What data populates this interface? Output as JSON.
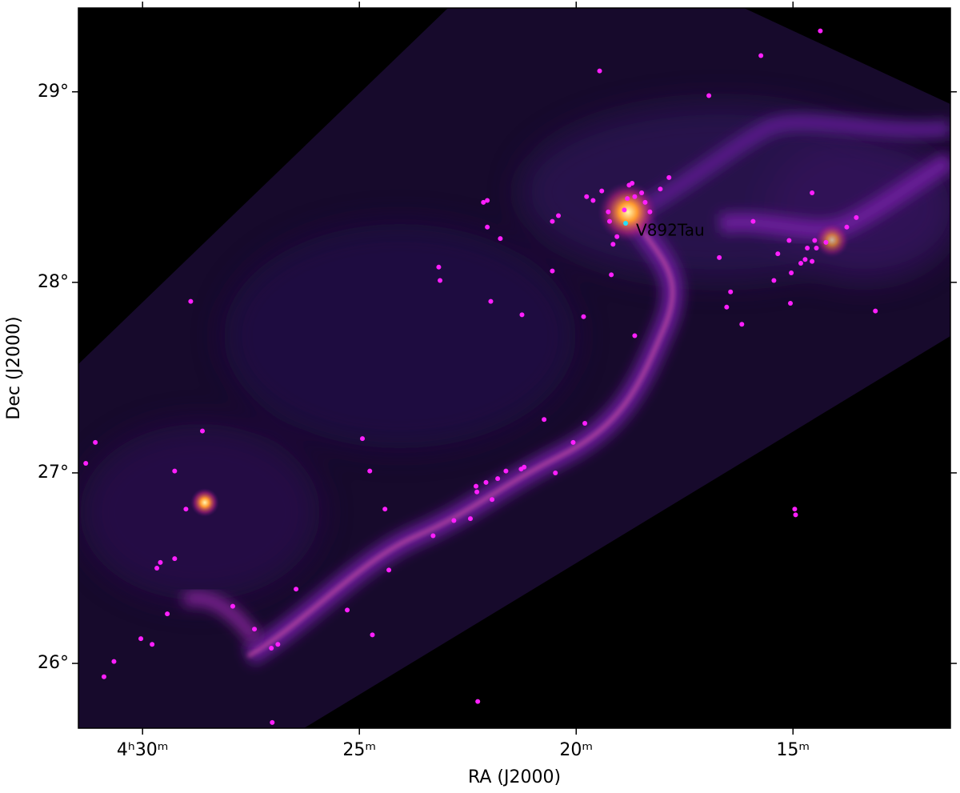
{
  "chart_data": {
    "type": "scatter",
    "xlabel": "RA (J2000)",
    "ylabel": "Dec (J2000)",
    "xlim": [
      31.48,
      11.37
    ],
    "ylim": [
      25.66,
      29.44
    ],
    "xticks": [
      {
        "value": 30,
        "label": "4ʰ30ᵐ"
      },
      {
        "value": 25,
        "label": "25ᵐ"
      },
      {
        "value": 20,
        "label": "20ᵐ"
      },
      {
        "value": 15,
        "label": "15ᵐ"
      }
    ],
    "yticks": [
      {
        "value": 26,
        "label": "26°"
      },
      {
        "value": 27,
        "label": "27°"
      },
      {
        "value": 28,
        "label": "28°"
      },
      {
        "value": 29,
        "label": "29°"
      }
    ],
    "series": [
      {
        "color": "#ff1fff",
        "x": [
          14.37,
          15.74,
          19.46,
          16.94,
          31.09,
          31.31,
          28.89,
          28.62,
          29.26,
          29.0,
          29.59,
          29.67,
          29.26,
          29.43,
          27.92,
          27.42,
          30.04,
          29.78,
          30.66,
          30.89,
          26.46,
          27.03,
          26.88,
          27.01,
          25.28,
          24.7,
          24.32,
          24.41,
          24.76,
          24.93,
          23.3,
          22.82,
          22.44,
          22.31,
          22.29,
          22.08,
          21.94,
          21.81,
          21.62,
          21.27,
          21.2,
          20.48,
          20.74,
          20.07,
          19.8,
          22.27,
          22.14,
          22.05,
          22.05,
          21.75,
          21.97,
          21.25,
          23.17,
          23.14,
          20.55,
          20.41,
          20.55,
          19.83,
          19.76,
          19.61,
          19.41,
          19.26,
          19.23,
          19.15,
          19.19,
          19.06,
          18.89,
          18.78,
          18.71,
          18.65,
          18.49,
          18.82,
          18.41,
          18.3,
          18.06,
          17.86,
          18.65,
          15.92,
          16.7,
          16.44,
          16.53,
          16.18,
          15.44,
          15.35,
          15.09,
          15.04,
          15.06,
          14.56,
          14.5,
          14.46,
          14.67,
          14.72,
          14.82,
          14.56,
          14.24,
          13.76,
          13.54,
          13.1,
          14.96,
          14.94
        ],
        "y": [
          29.32,
          29.19,
          29.11,
          28.98,
          27.16,
          27.05,
          27.9,
          27.22,
          27.01,
          26.81,
          26.53,
          26.5,
          26.55,
          26.26,
          26.3,
          26.18,
          26.13,
          26.1,
          26.01,
          25.93,
          26.39,
          26.08,
          26.1,
          25.69,
          26.28,
          26.15,
          26.49,
          26.81,
          27.01,
          27.18,
          26.67,
          26.75,
          26.76,
          26.93,
          26.9,
          26.95,
          26.86,
          26.97,
          27.01,
          27.02,
          27.03,
          27.0,
          27.28,
          27.16,
          27.26,
          25.8,
          28.42,
          28.43,
          28.29,
          28.23,
          27.9,
          27.83,
          28.08,
          28.01,
          28.32,
          28.35,
          28.06,
          27.82,
          28.45,
          28.43,
          28.48,
          28.37,
          28.32,
          28.2,
          28.04,
          28.24,
          28.38,
          28.51,
          28.52,
          28.45,
          28.47,
          28.44,
          28.42,
          28.37,
          28.49,
          28.55,
          27.72,
          28.32,
          28.13,
          27.95,
          27.87,
          27.78,
          28.01,
          28.15,
          28.22,
          28.05,
          27.89,
          28.47,
          28.22,
          28.18,
          28.18,
          28.12,
          28.1,
          28.11,
          28.21,
          28.29,
          28.34,
          27.85,
          26.81,
          26.78
        ]
      }
    ],
    "annotation": {
      "text": "V892Tau",
      "x": 18.86,
      "y": 28.31,
      "color": "#22e0ff"
    }
  }
}
